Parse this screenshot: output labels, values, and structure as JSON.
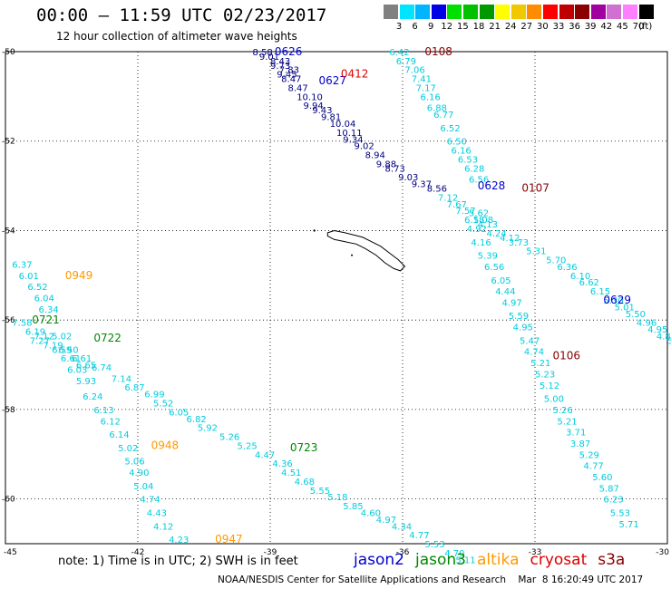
{
  "header": {
    "title": "00:00 – 11:59 UTC 02/23/2017",
    "subtitle": "12 hour collection of altimeter wave heights"
  },
  "legend": {
    "swatches": [
      {
        "label": "3",
        "color": "#808080"
      },
      {
        "label": "6",
        "color": "#00e4ff"
      },
      {
        "label": "9",
        "color": "#00b4ff"
      },
      {
        "label": "12",
        "color": "#0000e6"
      },
      {
        "label": "15",
        "color": "#00e000"
      },
      {
        "label": "18",
        "color": "#00c000"
      },
      {
        "label": "21",
        "color": "#009a00"
      },
      {
        "label": "24",
        "color": "#ffff00"
      },
      {
        "label": "27",
        "color": "#f0c800"
      },
      {
        "label": "30",
        "color": "#ff8c00"
      },
      {
        "label": "33",
        "color": "#ff0000"
      },
      {
        "label": "36",
        "color": "#c00000"
      },
      {
        "label": "39",
        "color": "#8b0000"
      },
      {
        "label": "42",
        "color": "#a000a0"
      },
      {
        "label": "45",
        "color": "#d070d0"
      },
      {
        "label": "70",
        "color": "#ff80ff"
      },
      {
        "label": "",
        "color": "#000000"
      }
    ],
    "unit": "(ft)"
  },
  "axes": {
    "lat_labels": [
      "-50",
      "-52",
      "-54",
      "-56",
      "-58",
      "-60"
    ],
    "lon_labels": [
      "-45",
      "-42",
      "-39",
      "-36",
      "-33",
      "-30"
    ]
  },
  "colors": {
    "jason2": "#0000cc",
    "jason3": "#008800",
    "altika": "#ff9900",
    "cryosat": "#dd0000",
    "s3a": "#880000",
    "value": "#00ccdd",
    "value_dark": "#000080"
  },
  "tracks": [
    {
      "id": "0626",
      "sat": "jason2",
      "label_lon": -38.9,
      "label_lat": -50.0,
      "points": [
        [
          -39.4,
          -50.0,
          "8.58"
        ],
        [
          -39.25,
          -50.1,
          "9.01"
        ],
        [
          -39.0,
          -50.3,
          "9.73"
        ],
        [
          -38.85,
          -50.5,
          "9.45"
        ]
      ]
    },
    {
      "id": "0627",
      "sat": "jason2",
      "label_lon": -37.9,
      "label_lat": -50.65,
      "points": [
        [
          -39.0,
          -50.2,
          "8.43"
        ],
        [
          -38.8,
          -50.4,
          "7.83"
        ],
        [
          -38.75,
          -50.6,
          "8.47"
        ],
        [
          -38.6,
          -50.8,
          "8.47"
        ],
        [
          -38.4,
          -51.0,
          "10.10"
        ],
        [
          -38.25,
          -51.2,
          "9.94"
        ],
        [
          -38.05,
          -51.3,
          "9.43"
        ],
        [
          -37.85,
          -51.45,
          "9.81"
        ],
        [
          -37.65,
          -51.6,
          "10.04"
        ],
        [
          -37.5,
          -51.8,
          "10.11"
        ],
        [
          -37.35,
          -51.95,
          "9.34"
        ],
        [
          -37.1,
          -52.1,
          "9.02"
        ],
        [
          -36.85,
          -52.3,
          "8.94"
        ],
        [
          -36.6,
          -52.5,
          "9.88"
        ],
        [
          -36.4,
          -52.6,
          "8.73"
        ],
        [
          -36.1,
          -52.8,
          "9.03"
        ],
        [
          -35.8,
          -52.95,
          "9.37"
        ]
      ]
    },
    {
      "id": "0412",
      "sat": "cryosat",
      "label_lon": -37.4,
      "label_lat": -50.5,
      "points": []
    },
    {
      "id": "0108",
      "sat": "s3a",
      "label_lon": -35.5,
      "label_lat": -50.0,
      "points": [
        [
          -36.3,
          -50.0,
          "6.42"
        ],
        [
          -36.15,
          -50.2,
          "6.79"
        ],
        [
          -35.95,
          -50.4,
          "7.06"
        ],
        [
          -35.8,
          -50.6,
          "7.41"
        ],
        [
          -35.7,
          -50.8,
          "7.17"
        ],
        [
          -35.6,
          -51.0,
          "6.16"
        ],
        [
          -35.45,
          -51.25,
          "6.88"
        ],
        [
          -35.3,
          -51.4,
          "6.77"
        ],
        [
          -35.15,
          -51.7,
          "6.52"
        ],
        [
          -35.0,
          -52.0,
          "6.50"
        ],
        [
          -34.9,
          -52.2,
          "6.16"
        ],
        [
          -34.75,
          -52.4,
          "6.53"
        ],
        [
          -34.6,
          -52.6,
          "6.28"
        ],
        [
          -34.5,
          -52.85,
          "6.56"
        ]
      ]
    },
    {
      "id": "0628",
      "sat": "jason2",
      "label_lon": -34.3,
      "label_lat": -53.0,
      "points": [
        [
          -35.45,
          -53.05,
          "8.56"
        ],
        [
          -35.2,
          -53.25,
          "7.12"
        ],
        [
          -35.0,
          -53.4,
          "7.67"
        ],
        [
          -34.8,
          -53.55,
          "7.57"
        ]
      ]
    },
    {
      "id": "0107",
      "sat": "s3a",
      "label_lon": -33.3,
      "label_lat": -53.05,
      "points": [
        [
          -34.5,
          -53.6,
          "5.62"
        ],
        [
          -34.4,
          -53.75,
          "5.08"
        ],
        [
          -34.3,
          -53.85,
          "4.13"
        ],
        [
          -34.1,
          -54.05,
          "4.24"
        ],
        [
          -33.8,
          -54.15,
          "4.12"
        ],
        [
          -33.6,
          -54.25,
          "3.73"
        ],
        [
          -33.2,
          -54.45,
          "5.31"
        ],
        [
          -32.75,
          -54.65,
          "5.70"
        ],
        [
          -32.5,
          -54.8,
          "6.36"
        ],
        [
          -32.2,
          -55.0,
          "6.10"
        ],
        [
          -32.0,
          -55.15,
          "6.62"
        ],
        [
          -31.75,
          -55.35,
          "6.15"
        ],
        [
          -31.45,
          -55.55,
          "5.30"
        ],
        [
          -31.2,
          -55.7,
          "5.01"
        ],
        [
          -30.95,
          -55.85,
          "5.50"
        ],
        [
          -30.7,
          -56.05,
          "4.96"
        ],
        [
          -30.45,
          -56.2,
          "4.95"
        ],
        [
          -30.25,
          -56.35,
          "4.85"
        ],
        [
          -30.0,
          -56.45,
          "5.39"
        ],
        [
          -29.7,
          -56.6,
          "5.13"
        ],
        [
          -29.45,
          -56.8,
          "5.27"
        ]
      ]
    },
    {
      "id": "0629",
      "sat": "jason2",
      "label_lon": -31.45,
      "label_lat": -55.55,
      "points": []
    },
    {
      "id": "0106",
      "sat": "s3a",
      "label_lon": -32.6,
      "label_lat": -56.8,
      "points": [
        [
          -34.6,
          -53.75,
          "6.18"
        ],
        [
          -34.55,
          -53.95,
          "4.92"
        ],
        [
          -34.45,
          -54.25,
          "4.16"
        ],
        [
          -34.3,
          -54.55,
          "5.39"
        ],
        [
          -34.15,
          -54.8,
          "6.56"
        ],
        [
          -34.0,
          -55.1,
          "6.05"
        ],
        [
          -33.9,
          -55.35,
          "4.44"
        ],
        [
          -33.75,
          -55.6,
          "4.97"
        ],
        [
          -33.6,
          -55.9,
          "5.59"
        ],
        [
          -33.5,
          -56.15,
          "4.95"
        ],
        [
          -33.35,
          -56.45,
          "5.47"
        ],
        [
          -33.25,
          -56.7,
          "4.74"
        ],
        [
          -33.1,
          -56.95,
          "5.21"
        ],
        [
          -33.0,
          -57.2,
          "5.23"
        ],
        [
          -32.9,
          -57.45,
          "5.12"
        ],
        [
          -32.8,
          -57.75,
          "5.00"
        ],
        [
          -32.6,
          -58.0,
          "5.26"
        ],
        [
          -32.5,
          -58.25,
          "5.21"
        ],
        [
          -32.3,
          -58.5,
          "3.71"
        ],
        [
          -32.2,
          -58.75,
          "3.87"
        ],
        [
          -32.0,
          -59.0,
          "5.29"
        ],
        [
          -31.9,
          -59.25,
          "4.77"
        ],
        [
          -31.7,
          -59.5,
          "5.60"
        ],
        [
          -31.55,
          -59.75,
          "5.87"
        ],
        [
          -31.45,
          -60.0,
          "6.23"
        ],
        [
          -31.3,
          -60.3,
          "5.53"
        ],
        [
          -31.1,
          -60.55,
          "5.71"
        ]
      ]
    },
    {
      "id": "0949",
      "sat": "altika",
      "label_lon": -43.65,
      "label_lat": -55.0,
      "points": [
        [
          -44.85,
          -54.75,
          "6.37"
        ],
        [
          -44.7,
          -55.0,
          "6.01"
        ],
        [
          -44.5,
          -55.25,
          "6.52"
        ],
        [
          -44.35,
          -55.5,
          "6.04"
        ],
        [
          -44.25,
          -55.75,
          "6.34"
        ],
        [
          -43.95,
          -56.35,
          "5.02"
        ],
        [
          -43.8,
          -56.65,
          "6.50"
        ],
        [
          -43.6,
          -57.1,
          "6.03"
        ],
        [
          -43.4,
          -57.35,
          "5.93"
        ],
        [
          -43.25,
          -57.7,
          "6.24"
        ],
        [
          -43.0,
          -58.0,
          "6.13"
        ],
        [
          -42.85,
          -58.25,
          "6.12"
        ],
        [
          -42.65,
          -58.55,
          "6.14"
        ]
      ]
    },
    {
      "id": "0721",
      "sat": "jason3",
      "label_lon": -44.4,
      "label_lat": -56.0,
      "points": [
        [
          -44.85,
          -56.05,
          "7.58"
        ],
        [
          -44.55,
          -56.25,
          "6.19"
        ],
        [
          -44.35,
          -56.35,
          "7.12"
        ],
        [
          -44.45,
          -56.45,
          "7.27"
        ],
        [
          -44.15,
          -56.55,
          "7.19"
        ],
        [
          -43.95,
          -56.65,
          "6.59"
        ],
        [
          -43.75,
          -56.85,
          "6.61"
        ],
        [
          -43.4,
          -57.0,
          "6.65"
        ]
      ]
    },
    {
      "id": "0722",
      "sat": "jason3",
      "label_lon": -43.0,
      "label_lat": -56.4,
      "points": [
        [
          -43.5,
          -56.85,
          "6.61"
        ],
        [
          -43.05,
          -57.05,
          "6.74"
        ],
        [
          -42.6,
          -57.3,
          "7.14"
        ],
        [
          -42.3,
          -57.5,
          "6.87"
        ],
        [
          -41.85,
          -57.65,
          "6.99"
        ],
        [
          -41.65,
          -57.85,
          "5.52"
        ],
        [
          -41.3,
          -58.05,
          "6.05"
        ],
        [
          -40.9,
          -58.2,
          "6.82"
        ],
        [
          -40.65,
          -58.4,
          "5.92"
        ],
        [
          -40.15,
          -58.6,
          "5.26"
        ],
        [
          -39.75,
          -58.8,
          "5.25"
        ],
        [
          -39.35,
          -59.0,
          "4.47"
        ],
        [
          -38.95,
          -59.2,
          "4.36"
        ],
        [
          -38.75,
          -59.4,
          "4.51"
        ],
        [
          -38.45,
          -59.6,
          "4.68"
        ],
        [
          -38.1,
          -59.8,
          "5.55"
        ],
        [
          -37.7,
          -59.95,
          "5.18"
        ],
        [
          -37.35,
          -60.15,
          "5.85"
        ],
        [
          -36.95,
          -60.3,
          "4.60"
        ],
        [
          -36.6,
          -60.45,
          "4.97"
        ],
        [
          -36.25,
          -60.6,
          "4.34"
        ],
        [
          -35.85,
          -60.8,
          "4.77"
        ],
        [
          -35.5,
          -61.0,
          "5.53"
        ],
        [
          -35.05,
          -61.2,
          "4.70"
        ],
        [
          -34.8,
          -61.35,
          "5.11"
        ]
      ]
    },
    {
      "id": "0723",
      "sat": "jason3",
      "label_lon": -38.55,
      "label_lat": -58.85,
      "points": []
    },
    {
      "id": "0948",
      "sat": "altika",
      "label_lon": -41.7,
      "label_lat": -58.8,
      "points": [
        [
          -42.45,
          -58.85,
          "5.02"
        ],
        [
          -42.3,
          -59.15,
          "5.06"
        ],
        [
          -42.2,
          -59.4,
          "4.90"
        ],
        [
          -42.1,
          -59.7,
          "5.04"
        ],
        [
          -41.95,
          -60.0,
          "4.74"
        ],
        [
          -41.8,
          -60.3,
          "4.43"
        ],
        [
          -41.65,
          -60.6,
          "4.12"
        ],
        [
          -41.3,
          -60.9,
          "4.23"
        ]
      ]
    },
    {
      "id": "0947",
      "sat": "altika",
      "label_lon": -40.25,
      "label_lat": -60.9,
      "points": []
    }
  ],
  "footer": {
    "note": "note: 1) Time is in UTC; 2) SWH is in feet",
    "credit": "NOAA/NESDIS Center for Satellite Applications and Research    Mar  8 16:20:49 UTC 2017",
    "sats": [
      {
        "key": "jason2",
        "label": "jason2"
      },
      {
        "key": "jason3",
        "label": "jason3"
      },
      {
        "key": "altika",
        "label": "altika"
      },
      {
        "key": "cryosat",
        "label": "cryosat"
      },
      {
        "key": "s3a",
        "label": "s3a"
      }
    ]
  }
}
